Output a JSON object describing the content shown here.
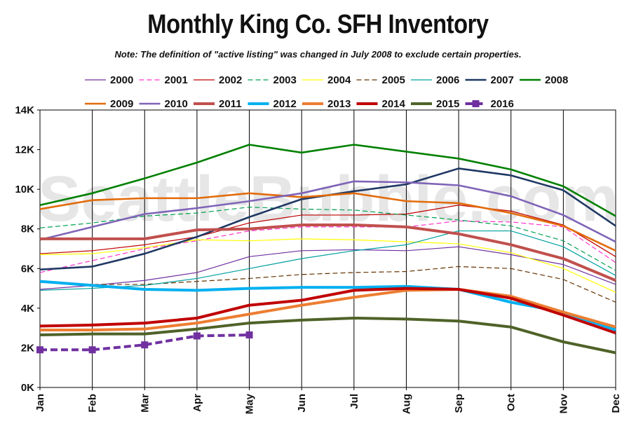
{
  "chart_data": {
    "type": "line",
    "title": "Monthly King Co. SFH Inventory",
    "subtitle": "Note: The definition of \"active listing\" was changed in July 2008 to exclude certain properties.",
    "watermark": "SeattleBubble.com",
    "categories": [
      "Jan",
      "Feb",
      "Mar",
      "Apr",
      "May",
      "Jun",
      "Jul",
      "Aug",
      "Sep",
      "Oct",
      "Nov",
      "Dec"
    ],
    "ylim": [
      0,
      14000
    ],
    "yticks": [
      0,
      2000,
      4000,
      6000,
      8000,
      10000,
      12000,
      14000
    ],
    "ytick_labels": [
      "0K",
      "2K",
      "4K",
      "6K",
      "8K",
      "10K",
      "12K",
      "14K"
    ],
    "grid": "vertical",
    "legend": "top",
    "series": [
      {
        "name": "2000",
        "color": "#7030a0",
        "dash": "solid",
        "weight": "thin",
        "values": [
          4950,
          5150,
          5400,
          5800,
          6600,
          6900,
          6950,
          6900,
          7100,
          6700,
          6200,
          5200
        ]
      },
      {
        "name": "2001",
        "color": "#ff33cc",
        "dash": "dashed",
        "weight": "thin",
        "values": [
          5800,
          6400,
          7000,
          7400,
          7900,
          8100,
          8100,
          8100,
          8400,
          8350,
          8100,
          6300
        ]
      },
      {
        "name": "2002",
        "color": "#c00000",
        "dash": "solid",
        "weight": "thin",
        "values": [
          6750,
          6900,
          7200,
          7600,
          8300,
          8700,
          8700,
          8750,
          9200,
          8900,
          8200,
          6600
        ]
      },
      {
        "name": "2003",
        "color": "#00a050",
        "dash": "dashed",
        "weight": "thin",
        "values": [
          8050,
          8300,
          8650,
          8800,
          9100,
          9000,
          8950,
          8700,
          8450,
          8150,
          7400,
          5900
        ]
      },
      {
        "name": "2004",
        "color": "#ffff00",
        "dash": "solid",
        "weight": "thin",
        "values": [
          6700,
          6750,
          7050,
          7450,
          7400,
          7500,
          7450,
          7350,
          7250,
          6800,
          6000,
          4800
        ]
      },
      {
        "name": "2005",
        "color": "#663300",
        "dash": "dashed",
        "weight": "thin",
        "values": [
          5300,
          5200,
          5200,
          5350,
          5500,
          5700,
          5800,
          5850,
          6100,
          6000,
          5450,
          4300
        ]
      },
      {
        "name": "2006",
        "color": "#00a0a0",
        "dash": "solid",
        "weight": "thin",
        "values": [
          4900,
          5000,
          5150,
          5500,
          6000,
          6500,
          6900,
          7200,
          7900,
          7900,
          7100,
          5650
        ]
      },
      {
        "name": "2007",
        "color": "#1f3864",
        "dash": "solid",
        "weight": "medium",
        "values": [
          5950,
          6100,
          6750,
          7600,
          8600,
          9500,
          9900,
          10250,
          11050,
          10700,
          9950,
          8150
        ]
      },
      {
        "name": "2008",
        "color": "#008000",
        "dash": "solid",
        "weight": "medium",
        "values": [
          9200,
          9800,
          10550,
          11350,
          12250,
          11850,
          12250,
          11900,
          11550,
          11000,
          10150,
          8650
        ]
      },
      {
        "name": "2009",
        "color": "#e26b0a",
        "dash": "solid",
        "weight": "medium",
        "values": [
          9000,
          9450,
          9550,
          9550,
          9800,
          9600,
          9800,
          9400,
          9300,
          8800,
          8150,
          6900
        ]
      },
      {
        "name": "2010",
        "color": "#7f64b8",
        "dash": "solid",
        "weight": "medium",
        "values": [
          7450,
          8100,
          8750,
          9050,
          9400,
          9800,
          10400,
          10350,
          10200,
          9650,
          8700,
          7350
        ]
      },
      {
        "name": "2011",
        "color": "#c0504d",
        "dash": "solid",
        "weight": "thick",
        "values": [
          7500,
          7500,
          7500,
          7950,
          8000,
          8200,
          8200,
          8100,
          7750,
          7200,
          6500,
          5400
        ]
      },
      {
        "name": "2012",
        "color": "#00b0f0",
        "dash": "solid",
        "weight": "thick",
        "values": [
          5350,
          5150,
          4950,
          4900,
          5000,
          5050,
          5050,
          5100,
          4950,
          4300,
          3800,
          2900
        ]
      },
      {
        "name": "2013",
        "color": "#ed7d31",
        "dash": "solid",
        "weight": "thick",
        "values": [
          2900,
          2900,
          2950,
          3250,
          3700,
          4150,
          4550,
          4900,
          4950,
          4600,
          3800,
          3050
        ]
      },
      {
        "name": "2014",
        "color": "#c00000",
        "dash": "solid",
        "weight": "thick",
        "values": [
          3100,
          3150,
          3250,
          3500,
          4150,
          4400,
          4900,
          5000,
          4950,
          4500,
          3650,
          2750
        ]
      },
      {
        "name": "2015",
        "color": "#4f6228",
        "dash": "solid",
        "weight": "thick",
        "values": [
          2650,
          2700,
          2700,
          2950,
          3250,
          3400,
          3500,
          3450,
          3350,
          3050,
          2300,
          1750
        ]
      },
      {
        "name": "2016",
        "color": "#7030a0",
        "dash": "dashed-marker",
        "weight": "thick",
        "values": [
          1900,
          1900,
          2150,
          2600,
          2650,
          null,
          null,
          null,
          null,
          null,
          null,
          null
        ]
      }
    ]
  }
}
